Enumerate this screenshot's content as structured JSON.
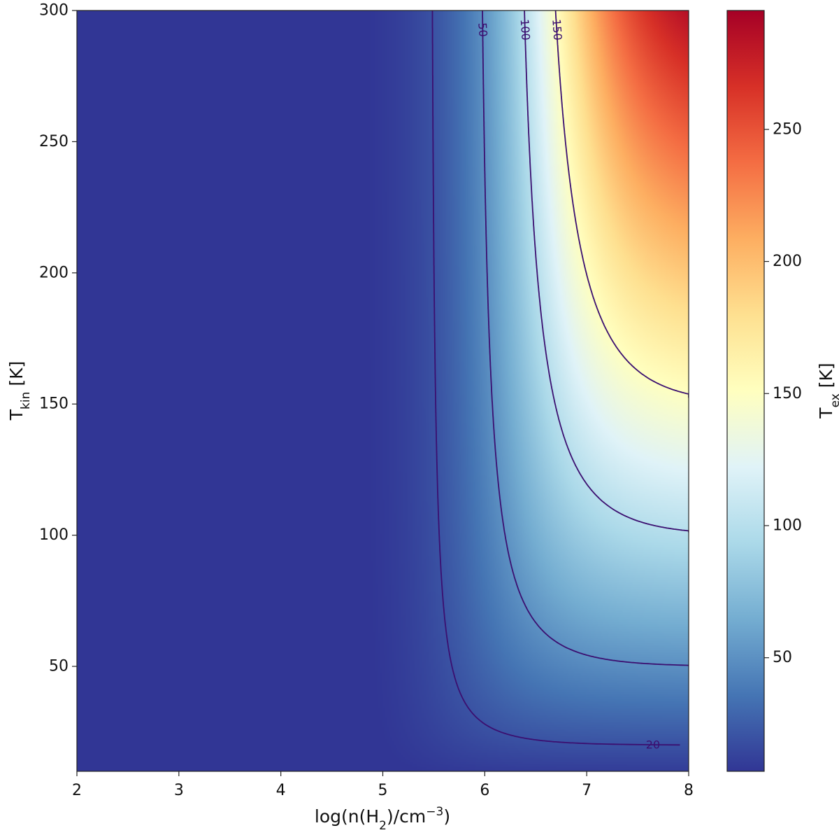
{
  "chart_data": {
    "type": "heatmap",
    "title": "",
    "xlabel": {
      "main": "log(n(H",
      "sub": "2",
      "rest": ")/cm",
      "sup": "−3",
      "close": ")"
    },
    "ylabel": {
      "main": "T",
      "sub": "kin",
      "rest": " [K]"
    },
    "colorbar_label": {
      "main": "T",
      "sub": "ex",
      "rest": " [K]"
    },
    "xlim": [
      2,
      8
    ],
    "ylim": [
      10,
      300
    ],
    "x_ticks": [
      2,
      3,
      4,
      5,
      6,
      7,
      8
    ],
    "x_tick_labels": [
      "2",
      "3",
      "4",
      "5",
      "6",
      "7",
      "8"
    ],
    "y_ticks": [
      50,
      100,
      150,
      200,
      250,
      300
    ],
    "y_tick_labels": [
      "50",
      "100",
      "150",
      "200",
      "250",
      "300"
    ],
    "colorbar_range": [
      7,
      295
    ],
    "colorbar_ticks": [
      50,
      100,
      150,
      200,
      250
    ],
    "colorbar_tick_labels": [
      "50",
      "100",
      "150",
      "200",
      "250"
    ],
    "colormap": "RdYlBu_r",
    "colormap_stops": [
      "#313695",
      "#4575b4",
      "#74add1",
      "#abd9e9",
      "#e0f3f8",
      "#ffffbf",
      "#fee090",
      "#fdae61",
      "#f46d43",
      "#d73027",
      "#a50026"
    ],
    "contour_color": "#3b0f70",
    "contours": [
      {
        "level": 20,
        "label": "20"
      },
      {
        "level": 50,
        "label": "50"
      },
      {
        "level": 100,
        "label": "100"
      },
      {
        "level": 150,
        "label": "150"
      }
    ]
  }
}
